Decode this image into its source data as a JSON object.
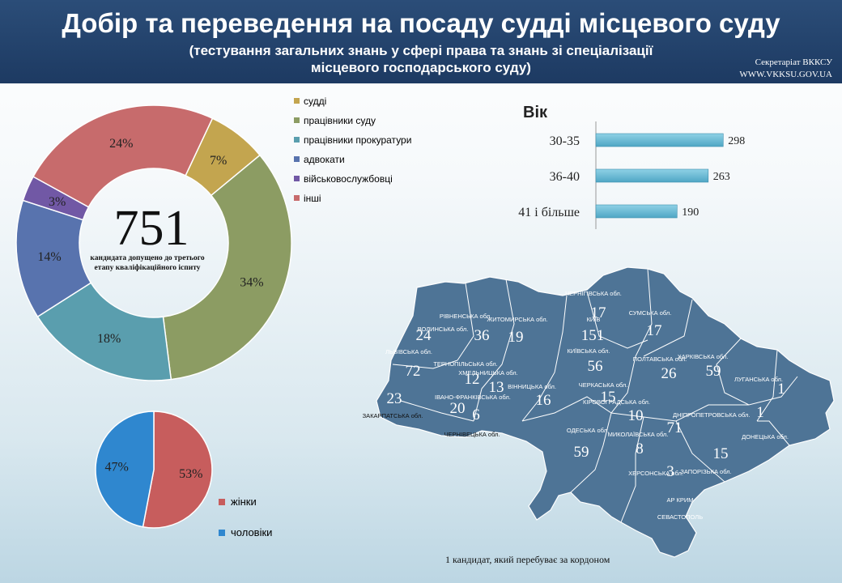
{
  "header": {
    "title": "Добір та переведення на посаду судді місцевого суду",
    "subtitle_line1": "(тестування загальних знань у сфері права та знань зі спеціалізації",
    "subtitle_line2": "місцевого господарського суду)",
    "secretariat": "Секретаріат ВККСУ",
    "website": "WWW.VKKSU.GOV.UA"
  },
  "center": {
    "total": "751",
    "caption_line1": "кандидата допущено до третього",
    "caption_line2": "етапу кваліфікаційного іспиту"
  },
  "footnote": "1 кандидат,  який перебуває за кордоном",
  "chart_data": [
    {
      "type": "pie",
      "categories": [
        "судді",
        "працівники суду",
        "працівники прокуратури",
        "адвокати",
        "військовослужбовці",
        "інші"
      ],
      "values": [
        7,
        34,
        18,
        14,
        3,
        24
      ],
      "labels": [
        "7%",
        "34%",
        "18%",
        "14%",
        "3%",
        "24%"
      ],
      "colors": [
        "#c3a54f",
        "#8c9c63",
        "#5a9eae",
        "#5873ae",
        "#7158a5",
        "#c76b6c"
      ]
    },
    {
      "type": "bar",
      "title": "Вік",
      "categories": [
        "30-35",
        "36-40",
        "41 і більше"
      ],
      "values": [
        298,
        263,
        190
      ],
      "labels": [
        "298",
        "263",
        "190"
      ],
      "color": "#4fa6c4"
    },
    {
      "type": "pie",
      "categories": [
        "жінки",
        "чоловіки"
      ],
      "values": [
        53,
        47
      ],
      "labels": [
        "53%",
        "47%"
      ],
      "colors": [
        "#c75d5d",
        "#2f87cf"
      ]
    }
  ],
  "map": {
    "regions": [
      {
        "name": "ВОЛИНСЬКА обл.",
        "value": "24"
      },
      {
        "name": "РІВНЕНСЬКА обл.",
        "value": "36"
      },
      {
        "name": "ЖИТОМИРСЬКА обл.",
        "value": "19"
      },
      {
        "name": "КИЇВ",
        "value": "151"
      },
      {
        "name": "ЧЕРНІГІВСЬКА обл.",
        "value": "17"
      },
      {
        "name": "СУМСЬКА обл.",
        "value": "17"
      },
      {
        "name": "ЛЬВІВСЬКА обл.",
        "value": "72"
      },
      {
        "name": "ТЕРНОПІЛЬСЬКА обл.",
        "value": "12"
      },
      {
        "name": "ХМЕЛЬНИЦЬКА обл.",
        "value": "13"
      },
      {
        "name": "ВІННИЦЬКА обл.",
        "value": "16"
      },
      {
        "name": "КИЇВСЬКА обл.",
        "value": "56"
      },
      {
        "name": "ЧЕРКАСЬКА обл.",
        "value": "15"
      },
      {
        "name": "ПОЛТАВСЬКА обл.",
        "value": "26"
      },
      {
        "name": "ХАРКІВСЬКА обл.",
        "value": "59"
      },
      {
        "name": "ЛУГАНСЬКА обл.",
        "value": "1"
      },
      {
        "name": "ЗАКАРПАТСЬКА обл.",
        "value": "23"
      },
      {
        "name": "ІВАНО-ФРАНКІВСЬКА обл.",
        "value": "20"
      },
      {
        "name": "ЧЕРНІВЕЦЬКА обл.",
        "value": "6"
      },
      {
        "name": "КІРОВОГРАДСЬКА обл.",
        "value": "10"
      },
      {
        "name": "ДНІПРОПЕТРОВСЬКА обл.",
        "value": "71"
      },
      {
        "name": "ДОНЕЦЬКА обл.",
        "value": "1"
      },
      {
        "name": "ОДЕСЬКА обл.",
        "value": "59"
      },
      {
        "name": "МИКОЛАЇВСЬКА обл.",
        "value": "8"
      },
      {
        "name": "ЗАПОРІЗЬКА обл.",
        "value": "15"
      },
      {
        "name": "ХЕРСОНСЬКА обл.",
        "value": "3"
      },
      {
        "name": "АР КРИМ",
        "value": ""
      },
      {
        "name": "СЕВАСТОПОЛЬ",
        "value": ""
      }
    ]
  }
}
